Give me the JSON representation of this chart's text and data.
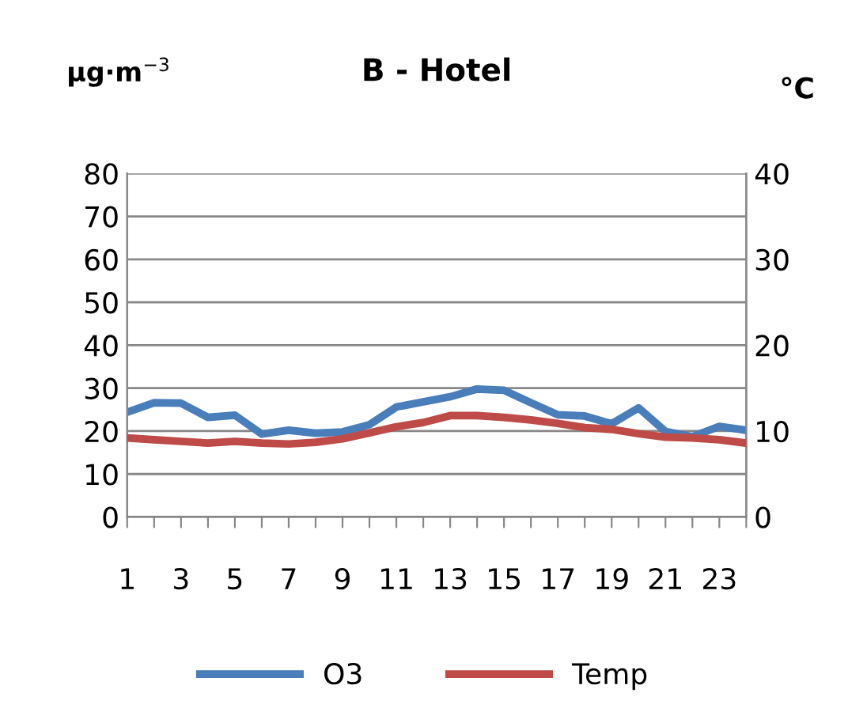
{
  "chart_data": {
    "type": "line",
    "title": "B - Hotel",
    "ylabel": "µg·m$^{−3}$",
    "y2label": "°C",
    "categories": [
      "1",
      null,
      "3",
      null,
      "5",
      null,
      "7",
      null,
      "9",
      null,
      "11",
      null,
      "13",
      null,
      "15",
      null,
      "17",
      null,
      "19",
      null,
      "21",
      null,
      "23",
      null
    ],
    "series": [
      {
        "name": "O3",
        "color": "#4a7ebb",
        "values": [
          24.4,
          26.6,
          26.5,
          23.2,
          23.7,
          19.3,
          20.2,
          19.5,
          19.8,
          21.5,
          25.6,
          26.8,
          28.0,
          29.8,
          29.5,
          26.6,
          23.8,
          23.5,
          21.7,
          25.4,
          19.9,
          18.7,
          21.1,
          20.2
        ]
      },
      {
        "name": "Temp",
        "color": "#be4b48",
        "axis": "y2",
        "values": [
          9.2,
          9.0,
          8.8,
          8.6,
          8.8,
          8.6,
          8.5,
          8.7,
          9.1,
          9.8,
          10.5,
          11.0,
          11.8,
          11.8,
          11.6,
          11.3,
          10.9,
          10.4,
          10.2,
          9.7,
          9.3,
          9.2,
          9.0,
          8.6
        ]
      }
    ],
    "ylim": [
      0,
      80
    ],
    "yticks": [
      0,
      10,
      20,
      30,
      40,
      50,
      60,
      70,
      80
    ],
    "y2lim": [
      0,
      40
    ],
    "y2ticks": [
      0,
      10,
      20,
      30,
      40
    ],
    "grid": "y",
    "legend": "bottom",
    "marker": "none",
    "line_style": "solid"
  }
}
